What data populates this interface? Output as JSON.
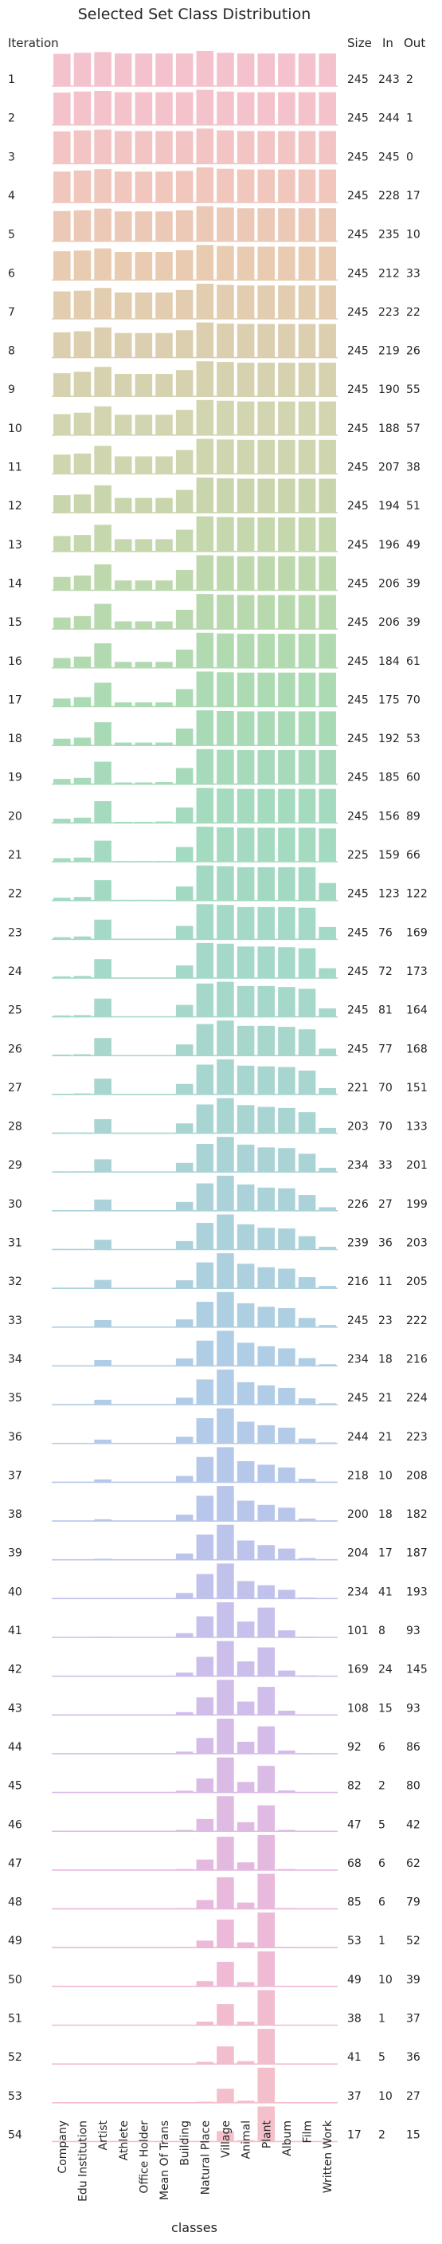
{
  "chart_data": {
    "type": "bar",
    "title": "Selected Set Class Distribution",
    "xlabel": "classes",
    "ylabel": "",
    "row_header": "Iteration",
    "stats_headers": [
      "Size",
      "In",
      "Out"
    ],
    "categories": [
      "Company",
      "Edu Institution",
      "Artist",
      "Athlete",
      "Office Holder",
      "Mean Of Trans",
      "Building",
      "Natural Place",
      "Village",
      "Animal",
      "Plant",
      "Album",
      "Film",
      "Written Work"
    ],
    "value_note": "values are relative bar heights (0-1) per row, estimated from the image",
    "row_colors": [
      "#f4c2cd",
      "#f4c2ca",
      "#f3c4c4",
      "#f0c6bd",
      "#ecc8b6",
      "#e8cbb1",
      "#e2cdb0",
      "#dbcfb0",
      "#d6d2b0",
      "#d3d4b0",
      "#cfd5ae",
      "#c9d6ad",
      "#c4d7ad",
      "#bed8ad",
      "#b8d9ae",
      "#b2dab0",
      "#acdab3",
      "#a8dab6",
      "#a6daba",
      "#a4dabd",
      "#a3dac0",
      "#a3d9c3",
      "#a3d9c6",
      "#a4d8c8",
      "#a5d7ca",
      "#a6d6cc",
      "#a7d5cf",
      "#a8d4d2",
      "#a9d3d5",
      "#aad2d8",
      "#abd1db",
      "#acd0de",
      "#adcfe1",
      "#afcde4",
      "#b1cce6",
      "#b3cae8",
      "#b6c8ea",
      "#b9c6eb",
      "#bdc4ec",
      "#c1c2ec",
      "#c6c0ec",
      "#cbbeeb",
      "#d0bdea",
      "#d5bce8",
      "#dabbe6",
      "#dfbae3",
      "#e4b9e0",
      "#e8b9dc",
      "#ecb9d8",
      "#efbad4",
      "#f1bcd0",
      "#f2bdcd",
      "#f3bfcb",
      "#f4c1ca"
    ],
    "rows": [
      {
        "iteration": 1,
        "size": 245,
        "in": 243,
        "out": 2,
        "values": [
          0.92,
          0.95,
          0.97,
          0.93,
          0.93,
          0.93,
          0.93,
          1.0,
          0.95,
          0.93,
          0.93,
          0.93,
          0.93,
          0.93
        ]
      },
      {
        "iteration": 2,
        "size": 245,
        "in": 244,
        "out": 1,
        "values": [
          0.92,
          0.95,
          0.97,
          0.93,
          0.93,
          0.93,
          0.93,
          1.0,
          0.95,
          0.93,
          0.93,
          0.93,
          0.93,
          0.93
        ]
      },
      {
        "iteration": 3,
        "size": 245,
        "in": 245,
        "out": 0,
        "values": [
          0.92,
          0.95,
          0.97,
          0.93,
          0.93,
          0.93,
          0.93,
          1.0,
          0.95,
          0.93,
          0.93,
          0.93,
          0.93,
          0.93
        ]
      },
      {
        "iteration": 4,
        "size": 245,
        "in": 228,
        "out": 17,
        "values": [
          0.88,
          0.91,
          0.95,
          0.88,
          0.88,
          0.88,
          0.9,
          1.0,
          0.96,
          0.94,
          0.94,
          0.94,
          0.94,
          0.94
        ]
      },
      {
        "iteration": 5,
        "size": 245,
        "in": 235,
        "out": 10,
        "values": [
          0.86,
          0.88,
          0.93,
          0.85,
          0.85,
          0.85,
          0.88,
          1.0,
          0.96,
          0.94,
          0.94,
          0.94,
          0.94,
          0.94
        ]
      },
      {
        "iteration": 6,
        "size": 245,
        "in": 212,
        "out": 33,
        "values": [
          0.82,
          0.84,
          0.9,
          0.8,
          0.8,
          0.8,
          0.85,
          1.0,
          0.97,
          0.95,
          0.95,
          0.95,
          0.95,
          0.95
        ]
      },
      {
        "iteration": 7,
        "size": 245,
        "in": 223,
        "out": 22,
        "values": [
          0.78,
          0.8,
          0.88,
          0.75,
          0.75,
          0.75,
          0.82,
          1.0,
          0.97,
          0.95,
          0.95,
          0.95,
          0.95,
          0.95
        ]
      },
      {
        "iteration": 8,
        "size": 245,
        "in": 219,
        "out": 26,
        "values": [
          0.72,
          0.75,
          0.86,
          0.7,
          0.7,
          0.7,
          0.78,
          1.0,
          0.97,
          0.96,
          0.96,
          0.96,
          0.96,
          0.96
        ]
      },
      {
        "iteration": 9,
        "size": 245,
        "in": 190,
        "out": 55,
        "values": [
          0.66,
          0.7,
          0.84,
          0.64,
          0.64,
          0.64,
          0.75,
          1.0,
          0.98,
          0.96,
          0.96,
          0.96,
          0.96,
          0.96
        ]
      },
      {
        "iteration": 10,
        "size": 245,
        "in": 188,
        "out": 57,
        "values": [
          0.6,
          0.64,
          0.82,
          0.58,
          0.58,
          0.58,
          0.72,
          1.0,
          0.98,
          0.96,
          0.96,
          0.96,
          0.96,
          0.96
        ]
      },
      {
        "iteration": 11,
        "size": 245,
        "in": 207,
        "out": 38,
        "values": [
          0.55,
          0.58,
          0.8,
          0.5,
          0.5,
          0.5,
          0.68,
          1.0,
          0.98,
          0.97,
          0.97,
          0.97,
          0.97,
          0.97
        ]
      },
      {
        "iteration": 12,
        "size": 245,
        "in": 194,
        "out": 51,
        "values": [
          0.5,
          0.52,
          0.78,
          0.42,
          0.42,
          0.42,
          0.65,
          1.0,
          0.98,
          0.97,
          0.97,
          0.97,
          0.97,
          0.97
        ]
      },
      {
        "iteration": 13,
        "size": 245,
        "in": 196,
        "out": 49,
        "values": [
          0.44,
          0.47,
          0.76,
          0.35,
          0.35,
          0.35,
          0.62,
          1.0,
          0.98,
          0.97,
          0.97,
          0.97,
          0.97,
          0.97
        ]
      },
      {
        "iteration": 14,
        "size": 245,
        "in": 206,
        "out": 39,
        "values": [
          0.38,
          0.42,
          0.74,
          0.28,
          0.28,
          0.28,
          0.58,
          1.0,
          0.98,
          0.97,
          0.97,
          0.97,
          0.97,
          0.97
        ]
      },
      {
        "iteration": 15,
        "size": 245,
        "in": 206,
        "out": 39,
        "values": [
          0.33,
          0.37,
          0.72,
          0.22,
          0.22,
          0.22,
          0.55,
          1.0,
          0.98,
          0.97,
          0.97,
          0.97,
          0.97,
          0.97
        ]
      },
      {
        "iteration": 16,
        "size": 245,
        "in": 184,
        "out": 61,
        "values": [
          0.28,
          0.32,
          0.7,
          0.17,
          0.17,
          0.17,
          0.52,
          1.0,
          0.98,
          0.97,
          0.97,
          0.97,
          0.97,
          0.97
        ]
      },
      {
        "iteration": 17,
        "size": 245,
        "in": 175,
        "out": 70,
        "values": [
          0.23,
          0.27,
          0.68,
          0.12,
          0.12,
          0.12,
          0.5,
          1.0,
          0.98,
          0.97,
          0.97,
          0.97,
          0.97,
          0.97
        ]
      },
      {
        "iteration": 18,
        "size": 245,
        "in": 192,
        "out": 53,
        "values": [
          0.19,
          0.22,
          0.66,
          0.08,
          0.08,
          0.08,
          0.48,
          1.0,
          0.98,
          0.97,
          0.97,
          0.97,
          0.97,
          0.97
        ]
      },
      {
        "iteration": 19,
        "size": 245,
        "in": 185,
        "out": 60,
        "values": [
          0.15,
          0.18,
          0.64,
          0.05,
          0.05,
          0.06,
          0.46,
          1.0,
          0.98,
          0.97,
          0.97,
          0.97,
          0.97,
          0.97
        ]
      },
      {
        "iteration": 20,
        "size": 245,
        "in": 156,
        "out": 89,
        "values": [
          0.12,
          0.15,
          0.62,
          0.03,
          0.03,
          0.04,
          0.44,
          1.0,
          0.98,
          0.97,
          0.97,
          0.97,
          0.97,
          0.97
        ]
      },
      {
        "iteration": 21,
        "size": 225,
        "in": 159,
        "out": 66,
        "values": [
          0.1,
          0.12,
          0.6,
          0.02,
          0.02,
          0.02,
          0.42,
          1.0,
          0.98,
          0.97,
          0.97,
          0.97,
          0.97,
          0.95
        ]
      },
      {
        "iteration": 22,
        "size": 245,
        "in": 123,
        "out": 122,
        "values": [
          0.08,
          0.1,
          0.58,
          0.01,
          0.01,
          0.01,
          0.4,
          1.0,
          0.98,
          0.95,
          0.95,
          0.95,
          0.95,
          0.5
        ]
      },
      {
        "iteration": 23,
        "size": 245,
        "in": 76,
        "out": 169,
        "values": [
          0.06,
          0.08,
          0.56,
          0,
          0,
          0,
          0.38,
          1.0,
          0.98,
          0.92,
          0.92,
          0.92,
          0.9,
          0.35
        ]
      },
      {
        "iteration": 24,
        "size": 245,
        "in": 72,
        "out": 173,
        "values": [
          0.05,
          0.06,
          0.54,
          0,
          0,
          0,
          0.36,
          1.0,
          0.98,
          0.9,
          0.9,
          0.88,
          0.85,
          0.28
        ]
      },
      {
        "iteration": 25,
        "size": 245,
        "in": 81,
        "out": 164,
        "values": [
          0.04,
          0.05,
          0.52,
          0,
          0,
          0,
          0.34,
          0.95,
          1.0,
          0.88,
          0.88,
          0.85,
          0.8,
          0.24
        ]
      },
      {
        "iteration": 26,
        "size": 245,
        "in": 77,
        "out": 168,
        "values": [
          0.03,
          0.04,
          0.5,
          0,
          0,
          0,
          0.32,
          0.9,
          1.0,
          0.85,
          0.85,
          0.82,
          0.75,
          0.2
        ]
      },
      {
        "iteration": 27,
        "size": 221,
        "in": 70,
        "out": 151,
        "values": [
          0.02,
          0.03,
          0.45,
          0,
          0,
          0,
          0.3,
          0.85,
          1.0,
          0.82,
          0.8,
          0.78,
          0.68,
          0.18
        ]
      },
      {
        "iteration": 28,
        "size": 203,
        "in": 70,
        "out": 133,
        "values": [
          0.02,
          0.02,
          0.4,
          0,
          0,
          0,
          0.28,
          0.82,
          1.0,
          0.8,
          0.75,
          0.72,
          0.6,
          0.15
        ]
      },
      {
        "iteration": 29,
        "size": 234,
        "in": 33,
        "out": 201,
        "values": [
          0.01,
          0.02,
          0.36,
          0,
          0,
          0,
          0.26,
          0.8,
          1.0,
          0.78,
          0.7,
          0.68,
          0.52,
          0.12
        ]
      },
      {
        "iteration": 30,
        "size": 226,
        "in": 27,
        "out": 199,
        "values": [
          0.01,
          0.01,
          0.32,
          0,
          0,
          0,
          0.25,
          0.78,
          1.0,
          0.75,
          0.66,
          0.64,
          0.45,
          0.1
        ]
      },
      {
        "iteration": 31,
        "size": 239,
        "in": 36,
        "out": 203,
        "values": [
          0.01,
          0.01,
          0.28,
          0,
          0,
          0,
          0.24,
          0.76,
          1.0,
          0.72,
          0.62,
          0.6,
          0.38,
          0.08
        ]
      },
      {
        "iteration": 32,
        "size": 216,
        "in": 11,
        "out": 205,
        "values": [
          0.01,
          0.01,
          0.24,
          0,
          0,
          0,
          0.23,
          0.74,
          1.0,
          0.7,
          0.6,
          0.56,
          0.32,
          0.07
        ]
      },
      {
        "iteration": 33,
        "size": 245,
        "in": 23,
        "out": 222,
        "values": [
          0,
          0.01,
          0.2,
          0,
          0,
          0,
          0.22,
          0.72,
          1.0,
          0.68,
          0.58,
          0.54,
          0.26,
          0.06
        ]
      },
      {
        "iteration": 34,
        "size": 234,
        "in": 18,
        "out": 216,
        "values": [
          0,
          0,
          0.17,
          0,
          0,
          0,
          0.21,
          0.72,
          1.0,
          0.66,
          0.56,
          0.5,
          0.22,
          0.05
        ]
      },
      {
        "iteration": 35,
        "size": 245,
        "in": 21,
        "out": 224,
        "values": [
          0,
          0,
          0.14,
          0,
          0,
          0,
          0.2,
          0.72,
          1.0,
          0.64,
          0.55,
          0.48,
          0.18,
          0.04
        ]
      },
      {
        "iteration": 36,
        "size": 244,
        "in": 21,
        "out": 223,
        "values": [
          0,
          0,
          0.11,
          0,
          0,
          0,
          0.19,
          0.72,
          1.0,
          0.62,
          0.52,
          0.45,
          0.14,
          0.03
        ]
      },
      {
        "iteration": 37,
        "size": 218,
        "in": 10,
        "out": 208,
        "values": [
          0,
          0,
          0.08,
          0,
          0,
          0,
          0.18,
          0.72,
          1.0,
          0.6,
          0.5,
          0.42,
          0.1,
          0.02
        ]
      },
      {
        "iteration": 38,
        "size": 200,
        "in": 18,
        "out": 182,
        "values": [
          0,
          0,
          0.05,
          0,
          0,
          0,
          0.18,
          0.72,
          1.0,
          0.58,
          0.46,
          0.38,
          0.07,
          0.01
        ]
      },
      {
        "iteration": 39,
        "size": 204,
        "in": 17,
        "out": 187,
        "values": [
          0,
          0,
          0.03,
          0,
          0,
          0,
          0.18,
          0.72,
          1.0,
          0.55,
          0.42,
          0.32,
          0.05,
          0.01
        ]
      },
      {
        "iteration": 40,
        "size": 234,
        "in": 41,
        "out": 193,
        "values": [
          0,
          0,
          0.02,
          0,
          0,
          0,
          0.16,
          0.7,
          1.0,
          0.5,
          0.38,
          0.25,
          0.03,
          0
        ]
      },
      {
        "iteration": 41,
        "size": 101,
        "in": 8,
        "out": 93,
        "values": [
          0,
          0,
          0.01,
          0,
          0,
          0,
          0.12,
          0.6,
          1.0,
          0.45,
          0.85,
          0.2,
          0.02,
          0
        ]
      },
      {
        "iteration": 42,
        "size": 169,
        "in": 24,
        "out": 145,
        "values": [
          0,
          0,
          0,
          0,
          0,
          0,
          0.1,
          0.55,
          1.0,
          0.42,
          0.82,
          0.16,
          0.02,
          0
        ]
      },
      {
        "iteration": 43,
        "size": 108,
        "in": 15,
        "out": 93,
        "values": [
          0,
          0,
          0,
          0,
          0,
          0,
          0.08,
          0.5,
          1.0,
          0.38,
          0.8,
          0.12,
          0.01,
          0
        ]
      },
      {
        "iteration": 44,
        "size": 92,
        "in": 6,
        "out": 86,
        "values": [
          0,
          0,
          0,
          0,
          0,
          0,
          0.06,
          0.45,
          1.0,
          0.34,
          0.78,
          0.09,
          0.01,
          0
        ]
      },
      {
        "iteration": 45,
        "size": 82,
        "in": 2,
        "out": 80,
        "values": [
          0,
          0,
          0,
          0,
          0,
          0,
          0.05,
          0.4,
          1.0,
          0.3,
          0.76,
          0.06,
          0,
          0
        ]
      },
      {
        "iteration": 46,
        "size": 47,
        "in": 5,
        "out": 42,
        "values": [
          0,
          0,
          0,
          0,
          0,
          0,
          0.04,
          0.35,
          1.0,
          0.26,
          0.74,
          0.04,
          0,
          0
        ]
      },
      {
        "iteration": 47,
        "size": 68,
        "in": 6,
        "out": 62,
        "values": [
          0,
          0,
          0,
          0,
          0,
          0,
          0.03,
          0.3,
          0.95,
          0.22,
          1.0,
          0.03,
          0,
          0
        ]
      },
      {
        "iteration": 48,
        "size": 85,
        "in": 6,
        "out": 79,
        "values": [
          0,
          0,
          0,
          0,
          0,
          0,
          0.02,
          0.25,
          0.9,
          0.18,
          1.0,
          0.02,
          0,
          0
        ]
      },
      {
        "iteration": 49,
        "size": 53,
        "in": 1,
        "out": 52,
        "values": [
          0,
          0,
          0,
          0,
          0,
          0,
          0.01,
          0.2,
          0.8,
          0.15,
          1.0,
          0.01,
          0,
          0
        ]
      },
      {
        "iteration": 50,
        "size": 49,
        "in": 10,
        "out": 39,
        "values": [
          0,
          0,
          0,
          0,
          0,
          0,
          0,
          0.15,
          0.7,
          0.12,
          1.0,
          0,
          0,
          0
        ]
      },
      {
        "iteration": 51,
        "size": 38,
        "in": 1,
        "out": 37,
        "values": [
          0,
          0,
          0,
          0,
          0,
          0,
          0,
          0.1,
          0.6,
          0.1,
          1.0,
          0,
          0,
          0
        ]
      },
      {
        "iteration": 52,
        "size": 41,
        "in": 5,
        "out": 36,
        "values": [
          0,
          0,
          0,
          0,
          0,
          0,
          0,
          0.06,
          0.5,
          0.08,
          1.0,
          0,
          0,
          0
        ]
      },
      {
        "iteration": 53,
        "size": 37,
        "in": 10,
        "out": 27,
        "values": [
          0,
          0,
          0,
          0,
          0,
          0,
          0,
          0.03,
          0.4,
          0.06,
          1.0,
          0,
          0,
          0
        ]
      },
      {
        "iteration": 54,
        "size": 17,
        "in": 2,
        "out": 15,
        "values": [
          0,
          0,
          0,
          0,
          0,
          0,
          0,
          0.01,
          0.3,
          0.04,
          1.0,
          0,
          0,
          0
        ]
      }
    ]
  }
}
